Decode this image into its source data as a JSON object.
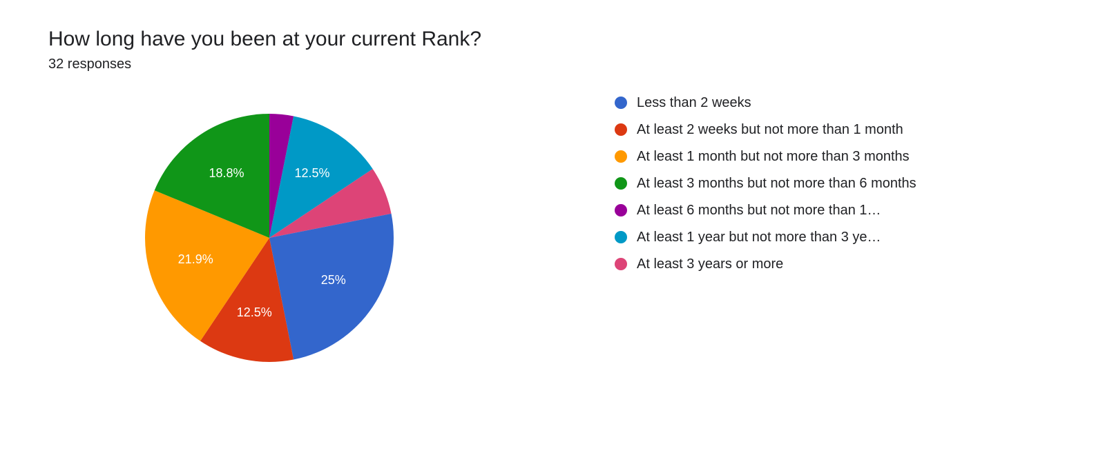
{
  "header": {
    "title": "How long have you been at your current Rank?",
    "subtitle": "32 responses"
  },
  "chart": {
    "type": "pie",
    "background_color": "#ffffff",
    "radius": 180,
    "label_fontsize": 18,
    "label_color": "#ffffff",
    "label_threshold_pct": 10,
    "start_angle_deg": -90,
    "legend_fontsize": 20,
    "legend_swatch_size": 18,
    "slices": [
      {
        "label": "Less than 2 weeks",
        "pct": 25.0,
        "display": "25%",
        "color": "#3366cc"
      },
      {
        "label": "At least 2 weeks but not more than 1 month",
        "pct": 12.5,
        "display": "12.5%",
        "color": "#dc3912"
      },
      {
        "label": "At least 1 month but not more than 3 months",
        "pct": 21.875,
        "display": "21.9%",
        "color": "#ff9900"
      },
      {
        "label": "At least 3 months but not more than 6 months",
        "pct": 18.75,
        "display": "18.8%",
        "color": "#109618"
      },
      {
        "label": "At least 6 months but not more than 1…",
        "pct": 3.125,
        "display": "3.1%",
        "color": "#990099"
      },
      {
        "label": "At least 1 year but not more than 3 ye…",
        "pct": 12.5,
        "display": "12.5%",
        "color": "#0099c6"
      },
      {
        "label": "At least 3 years or more",
        "pct": 6.25,
        "display": "6.3%",
        "color": "#dd4477"
      }
    ]
  }
}
